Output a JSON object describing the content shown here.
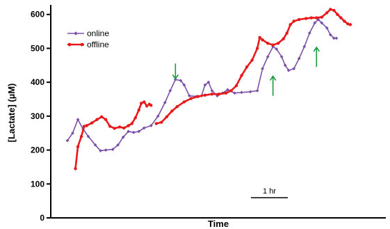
{
  "chart_data": {
    "type": "line",
    "xlabel": "Time",
    "ylabel": "[Lactate] (µM)",
    "ylim": [
      0,
      620
    ],
    "yticks": [
      0,
      100,
      200,
      300,
      400,
      500,
      600
    ],
    "xlim": [
      0,
      9
    ],
    "grid": false,
    "legend_position": "top-left",
    "scale_bar": {
      "label": "1 hr",
      "length_hours": 1
    },
    "series": [
      {
        "name": "online",
        "color": "#7b50a8",
        "marker": "diamond",
        "segments": [
          [
            [
              0.0,
              228
            ],
            [
              0.15,
              250
            ],
            [
              0.3,
              290
            ],
            [
              0.45,
              262
            ],
            [
              0.6,
              240
            ],
            [
              0.8,
              215
            ],
            [
              0.95,
              198
            ],
            [
              1.1,
              200
            ],
            [
              1.3,
              202
            ],
            [
              1.45,
              215
            ],
            [
              1.6,
              238
            ],
            [
              1.75,
              255
            ],
            [
              1.9,
              252
            ],
            [
              2.05,
              255
            ],
            [
              2.2,
              265
            ],
            [
              2.4,
              272
            ],
            [
              2.6,
              300
            ],
            [
              2.8,
              340
            ],
            [
              2.95,
              375
            ],
            [
              3.1,
              408
            ],
            [
              3.25,
              405
            ],
            [
              3.35,
              392
            ],
            [
              3.5,
              360
            ],
            [
              3.7,
              358
            ],
            [
              3.85,
              360
            ],
            [
              3.95,
              392
            ],
            [
              4.05,
              400
            ],
            [
              4.15,
              375
            ],
            [
              4.3,
              360
            ],
            [
              4.45,
              368
            ],
            [
              4.6,
              378
            ],
            [
              4.8,
              368
            ],
            [
              5.0,
              370
            ],
            [
              5.25,
              372
            ],
            [
              5.45,
              375
            ],
            [
              5.6,
              440
            ],
            [
              5.75,
              475
            ],
            [
              5.9,
              505
            ],
            [
              6.0,
              498
            ],
            [
              6.15,
              475
            ],
            [
              6.25,
              450
            ],
            [
              6.35,
              435
            ],
            [
              6.5,
              440
            ],
            [
              6.65,
              470
            ],
            [
              6.8,
              505
            ],
            [
              6.95,
              545
            ],
            [
              7.1,
              575
            ],
            [
              7.2,
              585
            ],
            [
              7.3,
              575
            ],
            [
              7.45,
              560
            ],
            [
              7.55,
              540
            ],
            [
              7.65,
              530
            ],
            [
              7.72,
              530
            ]
          ]
        ]
      },
      {
        "name": "offline",
        "color": "#e8191b",
        "marker": "circle",
        "segments": [
          [
            [
              0.23,
              145
            ],
            [
              0.3,
              210
            ],
            [
              0.4,
              240
            ],
            [
              0.48,
              270
            ],
            [
              0.55,
              272
            ],
            [
              0.7,
              280
            ],
            [
              0.85,
              290
            ],
            [
              0.98,
              298
            ],
            [
              1.1,
              290
            ],
            [
              1.22,
              270
            ],
            [
              1.35,
              264
            ],
            [
              1.5,
              268
            ],
            [
              1.62,
              265
            ],
            [
              1.75,
              272
            ],
            [
              1.85,
              278
            ],
            [
              1.95,
              295
            ],
            [
              2.05,
              318
            ],
            [
              2.12,
              338
            ],
            [
              2.2,
              342
            ],
            [
              2.28,
              330
            ]
          ],
          [
            [
              2.35,
              335
            ],
            [
              2.4,
              332
            ]
          ],
          [
            [
              2.55,
              278
            ],
            [
              2.7,
              282
            ],
            [
              2.85,
              298
            ],
            [
              3.0,
              315
            ],
            [
              3.15,
              328
            ],
            [
              3.35,
              342
            ],
            [
              3.55,
              352
            ],
            [
              3.75,
              358
            ],
            [
              3.95,
              362
            ],
            [
              4.15,
              365
            ],
            [
              4.35,
              365
            ],
            [
              4.55,
              368
            ],
            [
              4.7,
              375
            ],
            [
              4.85,
              390
            ],
            [
              5.0,
              420
            ],
            [
              5.15,
              445
            ],
            [
              5.3,
              465
            ],
            [
              5.45,
              500
            ],
            [
              5.52,
              532
            ],
            [
              5.6,
              525
            ],
            [
              5.75,
              515
            ],
            [
              5.9,
              510
            ],
            [
              6.05,
              515
            ],
            [
              6.2,
              528
            ],
            [
              6.3,
              545
            ],
            [
              6.4,
              570
            ],
            [
              6.5,
              580
            ],
            [
              6.65,
              585
            ],
            [
              6.85,
              588
            ],
            [
              7.0,
              590
            ],
            [
              7.15,
              590
            ],
            [
              7.3,
              592
            ],
            [
              7.45,
              605
            ],
            [
              7.55,
              615
            ],
            [
              7.65,
              612
            ],
            [
              7.75,
              600
            ],
            [
              7.85,
              590
            ],
            [
              7.95,
              580
            ],
            [
              8.05,
              572
            ],
            [
              8.12,
              570
            ]
          ]
        ]
      }
    ],
    "annotations": [
      {
        "type": "arrow",
        "direction": "down",
        "x": 3.1,
        "y_from": 455,
        "y_to": 410,
        "color": "#1a9a3c"
      },
      {
        "type": "arrow",
        "direction": "up",
        "x": 5.9,
        "y_from": 360,
        "y_to": 418,
        "color": "#1a9a3c"
      },
      {
        "type": "arrow",
        "direction": "up",
        "x": 7.15,
        "y_from": 445,
        "y_to": 503,
        "color": "#1a9a3c"
      }
    ]
  }
}
